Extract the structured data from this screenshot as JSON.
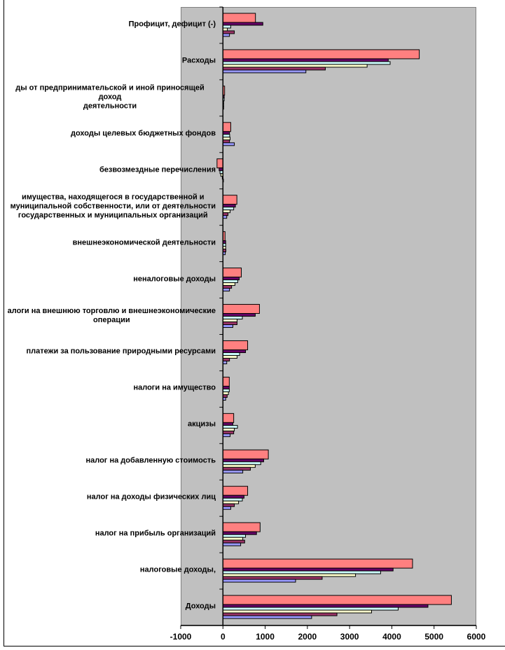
{
  "chart_data": {
    "type": "bar",
    "orientation": "horizontal",
    "title": "",
    "xlabel": "",
    "ylabel": "",
    "xlim": [
      -1000,
      6000
    ],
    "x_ticks": [
      "-1000",
      "0",
      "1000",
      "2000",
      "3000",
      "4000",
      "5000",
      "6000"
    ],
    "grid": false,
    "legend": "none",
    "categories": [
      "Профицит, дефицит (-)",
      "Расходы",
      "ды от предпринимательской и иной приносящей доход\nдеятельности",
      "доходы целевых бюджетных фондов",
      "безвозмездные перечисления",
      "имущества, находящегося в государственной и\nмуниципальной собственности, или от деятельности\nгосударственных и муниципальных организаций",
      "внешнеэкономической деятельности",
      "неналоговые доходы",
      "алоги на внешнюю торговлю и внешнеэкономические\nоперации",
      "платежи за пользование природными ресурсами",
      "налоги на имущество",
      "акцизы",
      "налог на добавленную стоимость",
      "налог на доходы физических лиц",
      "налог на прибыль организаций",
      "налоговые доходы,",
      "Доходы"
    ],
    "series": [
      {
        "color": "#FF8080",
        "values": [
          770,
          4650,
          40,
          185,
          -140,
          330,
          50,
          435,
          865,
          585,
          150,
          255,
          1075,
          585,
          880,
          4490,
          5410
        ]
      },
      {
        "color": "#660066",
        "values": [
          945,
          3915,
          30,
          155,
          -90,
          295,
          65,
          385,
          765,
          535,
          150,
          235,
          965,
          500,
          795,
          4030,
          4855
        ]
      },
      {
        "color": "#CCFFFF",
        "values": [
          185,
          3960,
          30,
          160,
          -70,
          255,
          65,
          350,
          460,
          395,
          150,
          345,
          895,
          460,
          535,
          3735,
          4150
        ]
      },
      {
        "color": "#FFFFCC",
        "values": [
          105,
          3415,
          15,
          170,
          -50,
          170,
          65,
          285,
          335,
          335,
          130,
          270,
          765,
          370,
          470,
          3140,
          3520
        ]
      },
      {
        "color": "#993366",
        "values": [
          270,
          2425,
          15,
          155,
          -15,
          120,
          70,
          205,
          335,
          155,
          100,
          255,
          650,
          270,
          515,
          2350,
          2700
        ]
      },
      {
        "color": "#9999FF",
        "values": [
          155,
          1965,
          10,
          270,
          -5,
          90,
          55,
          155,
          235,
          90,
          65,
          170,
          470,
          185,
          420,
          1720,
          2100
        ]
      }
    ]
  }
}
